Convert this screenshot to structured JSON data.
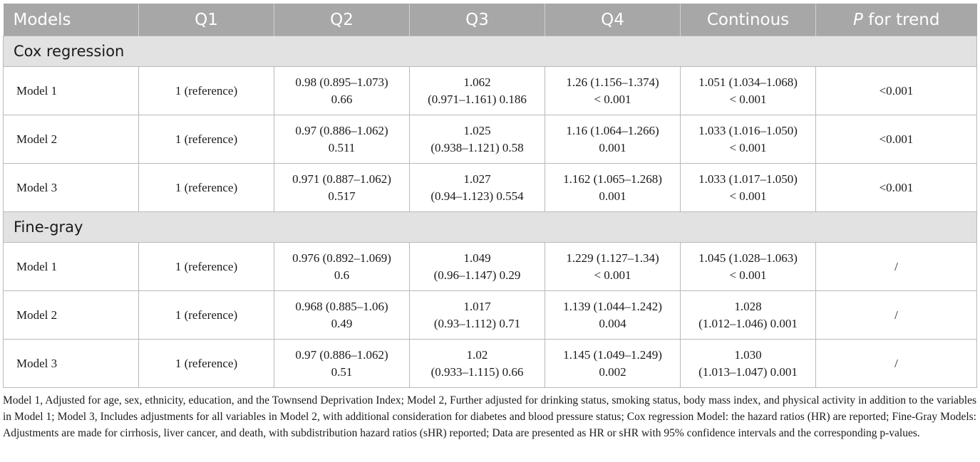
{
  "header": {
    "models": "Models",
    "q1": "Q1",
    "q2": "Q2",
    "q3": "Q3",
    "q4": "Q4",
    "continuous": "Continous",
    "p_italic": "P",
    "p_rest": " for trend"
  },
  "sections": [
    {
      "title": "Cox regression",
      "rows": [
        {
          "model": "Model 1",
          "q1": [
            "1 (reference)"
          ],
          "q2": [
            "0.98 (0.895–1.073)",
            "0.66"
          ],
          "q3": [
            "1.062",
            "(0.971–1.161) 0.186"
          ],
          "q4": [
            "1.26 (1.156–1.374)",
            "< 0.001"
          ],
          "cont": [
            "1.051 (1.034–1.068)",
            "< 0.001"
          ],
          "p": [
            "<0.001"
          ]
        },
        {
          "model": "Model 2",
          "q1": [
            "1 (reference)"
          ],
          "q2": [
            "0.97 (0.886–1.062)",
            "0.511"
          ],
          "q3": [
            "1.025",
            "(0.938–1.121) 0.58"
          ],
          "q4": [
            "1.16 (1.064–1.266)",
            "0.001"
          ],
          "cont": [
            "1.033 (1.016–1.050)",
            "< 0.001"
          ],
          "p": [
            "<0.001"
          ]
        },
        {
          "model": "Model 3",
          "q1": [
            "1 (reference)"
          ],
          "q2": [
            "0.971 (0.887–1.062)",
            "0.517"
          ],
          "q3": [
            "1.027",
            "(0.94–1.123) 0.554"
          ],
          "q4": [
            "1.162 (1.065–1.268)",
            "0.001"
          ],
          "cont": [
            "1.033 (1.017–1.050)",
            "< 0.001"
          ],
          "p": [
            "<0.001"
          ]
        }
      ]
    },
    {
      "title": "Fine-gray",
      "rows": [
        {
          "model": "Model 1",
          "q1": [
            "1 (reference)"
          ],
          "q2": [
            "0.976 (0.892–1.069)",
            "0.6"
          ],
          "q3": [
            "1.049",
            "(0.96–1.147) 0.29"
          ],
          "q4": [
            "1.229 (1.127–1.34)",
            "< 0.001"
          ],
          "cont": [
            "1.045 (1.028–1.063)",
            "< 0.001"
          ],
          "p": [
            "/"
          ]
        },
        {
          "model": "Model 2",
          "q1": [
            "1 (reference)"
          ],
          "q2": [
            "0.968 (0.885–1.06)",
            "0.49"
          ],
          "q3": [
            "1.017",
            "(0.93–1.112) 0.71"
          ],
          "q4": [
            "1.139 (1.044–1.242)",
            "0.004"
          ],
          "cont": [
            "1.028",
            "(1.012–1.046) 0.001"
          ],
          "p": [
            "/"
          ]
        },
        {
          "model": "Model 3",
          "q1": [
            "1 (reference)"
          ],
          "q2": [
            "0.97 (0.886–1.062)",
            "0.51"
          ],
          "q3": [
            "1.02",
            "(0.933–1.115) 0.66"
          ],
          "q4": [
            "1.145 (1.049–1.249)",
            "0.002"
          ],
          "cont": [
            "1.030",
            "(1.013–1.047) 0.001"
          ],
          "p": [
            "/"
          ]
        }
      ]
    }
  ],
  "footnote": "Model 1, Adjusted for age, sex, ethnicity, education, and the Townsend Deprivation Index; Model 2, Further adjusted for drinking status, smoking status, body mass index, and physical activity in addition to the variables in Model 1; Model 3, Includes adjustments for all variables in Model 2, with additional consideration for diabetes and blood pressure status; Cox regression Model: the hazard ratios (HR) are reported; Fine-Gray Models: Adjustments are made for cirrhosis, liver cancer, and death, with subdistribution hazard ratios (sHR) reported; Data are presented as HR or sHR with 95% confidence intervals and the corresponding p-values.",
  "colors": {
    "header_bg": "#a7a7a7",
    "section_bg": "#e2e2e2",
    "border": "#b9b9b9"
  }
}
